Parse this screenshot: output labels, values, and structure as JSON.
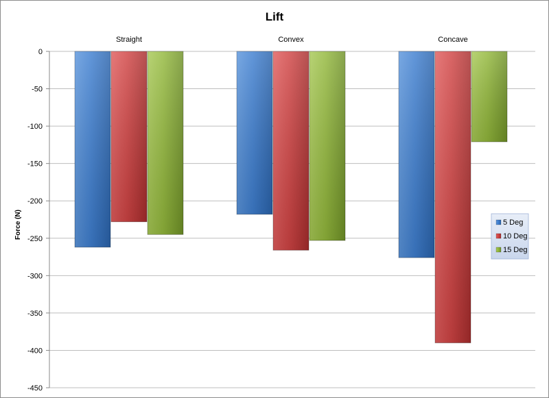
{
  "chart_data": {
    "type": "bar",
    "title": "Lift",
    "xlabel": "",
    "ylabel": "Force (N)",
    "categories": [
      "Straight",
      "Convex",
      "Concave"
    ],
    "series": [
      {
        "name": "5 Deg",
        "color": "#3a78c8",
        "values": [
          -262,
          -218,
          -276
        ]
      },
      {
        "name": "10 Deg",
        "color": "#c93a3a",
        "values": [
          -228,
          -266,
          -390
        ]
      },
      {
        "name": "15 Deg",
        "color": "#8fb232",
        "values": [
          -245,
          -253,
          -121
        ]
      }
    ],
    "yticks": [
      0,
      -50,
      -100,
      -150,
      -200,
      -250,
      -300,
      -350,
      -400,
      -450
    ],
    "ylim": [
      -450,
      0
    ],
    "grid": true,
    "legend_position": "right"
  }
}
